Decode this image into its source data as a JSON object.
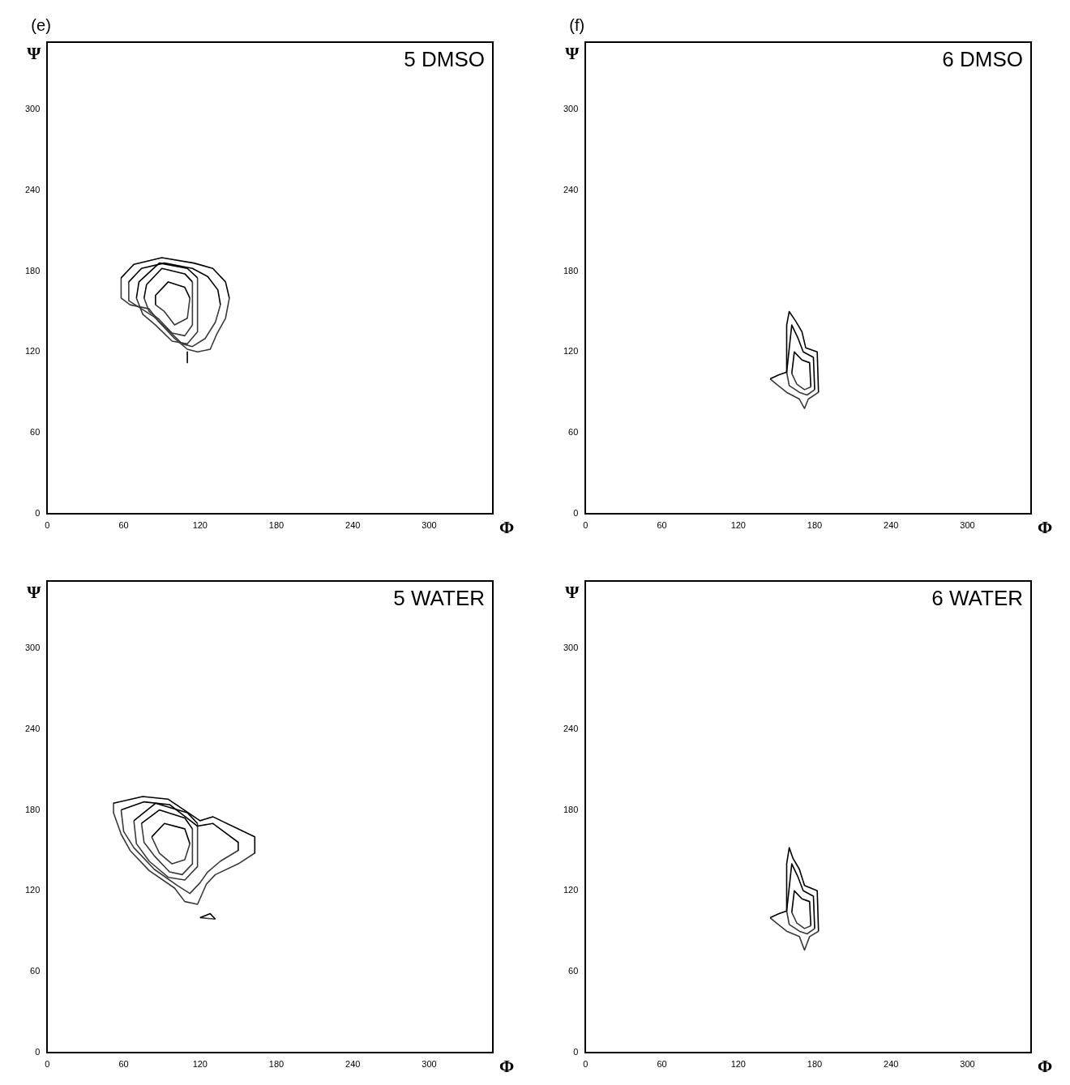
{
  "chart_data": [
    {
      "type": "line",
      "title": "5 DMSO",
      "annotations": [
        "(e)"
      ],
      "xlabel": "Φ",
      "ylabel": "Ψ",
      "xlim": [
        0,
        350
      ],
      "ylim": [
        0,
        350
      ],
      "xticks": [
        0,
        60,
        120,
        180,
        240,
        300
      ],
      "yticks": [
        0,
        60,
        120,
        180,
        240,
        300
      ],
      "marker": "none",
      "line_style": "solid",
      "series": [
        {
          "color": "#000000",
          "x": [
            58,
            68,
            90,
            115,
            130,
            140,
            143
          ],
          "values": [
            175,
            185,
            190,
            186,
            182,
            172,
            160
          ]
        },
        {
          "color": "#3a3a3a",
          "x": [
            58,
            58,
            65,
            80,
            88,
            100,
            110,
            118,
            128,
            133,
            140,
            143
          ],
          "values": [
            175,
            160,
            155,
            152,
            142,
            130,
            122,
            120,
            122,
            133,
            145,
            160
          ]
        },
        {
          "color": "#000000",
          "x": [
            64,
            74,
            92,
            114,
            126,
            134,
            136
          ],
          "values": [
            172,
            182,
            186,
            182,
            176,
            166,
            155
          ]
        },
        {
          "color": "#3a3a3a",
          "x": [
            64,
            64,
            74,
            84,
            94,
            106,
            114,
            124,
            132,
            136
          ],
          "values": [
            172,
            158,
            152,
            146,
            137,
            126,
            124,
            130,
            142,
            155
          ]
        },
        {
          "color": "#000000",
          "x": [
            70,
            72,
            88,
            110,
            118
          ],
          "values": [
            160,
            172,
            186,
            182,
            175
          ]
        },
        {
          "color": "#3a3a3a",
          "x": [
            70,
            75,
            85,
            98,
            110,
            118,
            118
          ],
          "values": [
            160,
            148,
            140,
            128,
            126,
            135,
            175
          ]
        },
        {
          "color": "#000000",
          "x": [
            76,
            78,
            90,
            108,
            114
          ],
          "values": [
            160,
            170,
            182,
            178,
            172
          ]
        },
        {
          "color": "#3a3a3a",
          "x": [
            76,
            80,
            88,
            98,
            108,
            114,
            114
          ],
          "values": [
            160,
            150,
            144,
            134,
            132,
            140,
            172
          ]
        },
        {
          "color": "#000000",
          "x": [
            85,
            85,
            95,
            108,
            112
          ],
          "values": [
            155,
            162,
            172,
            168,
            160
          ]
        },
        {
          "color": "#3a3a3a",
          "x": [
            85,
            92,
            100,
            110,
            112
          ],
          "values": [
            155,
            150,
            140,
            145,
            160
          ]
        },
        {
          "color": "#000000",
          "x": [
            110,
            110
          ],
          "values": [
            120,
            112
          ]
        }
      ]
    },
    {
      "type": "line",
      "title": "6 DMSO",
      "annotations": [
        "(f)"
      ],
      "xlabel": "Φ",
      "ylabel": "Ψ",
      "xlim": [
        0,
        350
      ],
      "ylim": [
        0,
        350
      ],
      "xticks": [
        0,
        60,
        120,
        180,
        240,
        300
      ],
      "yticks": [
        0,
        60,
        120,
        180,
        240,
        300
      ],
      "marker": "none",
      "line_style": "solid",
      "series": [
        {
          "color": "#000000",
          "x": [
            145,
            152,
            158,
            158,
            160,
            165,
            170,
            173,
            182,
            183
          ],
          "values": [
            100,
            103,
            105,
            140,
            150,
            143,
            135,
            123,
            120,
            90
          ]
        },
        {
          "color": "#3a3a3a",
          "x": [
            145,
            150,
            158,
            168,
            172,
            175,
            183
          ],
          "values": [
            100,
            96,
            90,
            85,
            78,
            85,
            90
          ]
        },
        {
          "color": "#000000",
          "x": [
            158,
            162,
            167,
            171,
            179,
            180
          ],
          "values": [
            105,
            140,
            130,
            120,
            116,
            92
          ]
        },
        {
          "color": "#3a3a3a",
          "x": [
            158,
            160,
            168,
            174,
            180
          ],
          "values": [
            105,
            95,
            90,
            88,
            92
          ]
        },
        {
          "color": "#000000",
          "x": [
            162,
            164,
            170,
            176,
            177
          ],
          "values": [
            104,
            120,
            114,
            112,
            94
          ]
        },
        {
          "color": "#3a3a3a",
          "x": [
            162,
            166,
            172,
            177
          ],
          "values": [
            104,
            96,
            92,
            94
          ]
        }
      ]
    },
    {
      "type": "line",
      "title": "5 WATER",
      "xlabel": "Φ",
      "ylabel": "Ψ",
      "xlim": [
        0,
        350
      ],
      "ylim": [
        0,
        350
      ],
      "xticks": [
        0,
        60,
        120,
        180,
        240,
        300
      ],
      "yticks": [
        0,
        60,
        120,
        180,
        240,
        300
      ],
      "marker": "none",
      "line_style": "solid",
      "series": [
        {
          "color": "#000000",
          "x": [
            52,
            75,
            95,
            120,
            130,
            163,
            163
          ],
          "values": [
            185,
            190,
            188,
            172,
            175,
            160,
            148
          ]
        },
        {
          "color": "#3a3a3a",
          "x": [
            52,
            52,
            58,
            65,
            80,
            100,
            108,
            118,
            125,
            132,
            150,
            163
          ],
          "values": [
            185,
            178,
            162,
            150,
            135,
            122,
            112,
            110,
            125,
            132,
            140,
            148
          ]
        },
        {
          "color": "#000000",
          "x": [
            58,
            76,
            96,
            118,
            130,
            150,
            150
          ],
          "values": [
            180,
            186,
            184,
            168,
            170,
            156,
            150
          ]
        },
        {
          "color": "#3a3a3a",
          "x": [
            58,
            60,
            68,
            84,
            102,
            112,
            120,
            126,
            136,
            150
          ],
          "values": [
            180,
            164,
            152,
            136,
            124,
            118,
            126,
            134,
            142,
            150
          ]
        },
        {
          "color": "#000000",
          "x": [
            68,
            85,
            110,
            118
          ],
          "values": [
            172,
            185,
            178,
            170
          ]
        },
        {
          "color": "#3a3a3a",
          "x": [
            68,
            70,
            80,
            95,
            108,
            118,
            118
          ],
          "values": [
            172,
            155,
            142,
            130,
            128,
            138,
            170
          ]
        },
        {
          "color": "#000000",
          "x": [
            74,
            88,
            108,
            114
          ],
          "values": [
            170,
            180,
            174,
            166
          ]
        },
        {
          "color": "#3a3a3a",
          "x": [
            74,
            76,
            84,
            96,
            106,
            114,
            114
          ],
          "values": [
            170,
            156,
            146,
            134,
            132,
            140,
            166
          ]
        },
        {
          "color": "#000000",
          "x": [
            82,
            92,
            108,
            112
          ],
          "values": [
            160,
            170,
            166,
            155
          ]
        },
        {
          "color": "#3a3a3a",
          "x": [
            82,
            88,
            98,
            108,
            112
          ],
          "values": [
            160,
            148,
            140,
            143,
            155
          ]
        },
        {
          "color": "#000000",
          "x": [
            120,
            128,
            132
          ],
          "values": [
            100,
            103,
            99
          ]
        },
        {
          "color": "#3a3a3a",
          "x": [
            120,
            132
          ],
          "values": [
            100,
            99
          ]
        }
      ]
    },
    {
      "type": "line",
      "title": "6 WATER",
      "xlabel": "Φ",
      "ylabel": "Ψ",
      "xlim": [
        0,
        350
      ],
      "ylim": [
        0,
        350
      ],
      "xticks": [
        0,
        60,
        120,
        180,
        240,
        300
      ],
      "yticks": [
        0,
        60,
        120,
        180,
        240,
        300
      ],
      "marker": "none",
      "line_style": "solid",
      "series": [
        {
          "color": "#000000",
          "x": [
            145,
            152,
            158,
            158,
            160,
            163,
            168,
            172,
            182,
            183
          ],
          "values": [
            100,
            103,
            105,
            140,
            152,
            144,
            136,
            124,
            120,
            90
          ]
        },
        {
          "color": "#3a3a3a",
          "x": [
            145,
            150,
            158,
            168,
            172,
            176,
            183
          ],
          "values": [
            100,
            96,
            90,
            86,
            76,
            86,
            90
          ]
        },
        {
          "color": "#000000",
          "x": [
            158,
            162,
            167,
            171,
            179,
            180
          ],
          "values": [
            105,
            140,
            130,
            120,
            116,
            92
          ]
        },
        {
          "color": "#3a3a3a",
          "x": [
            158,
            160,
            168,
            174,
            180
          ],
          "values": [
            105,
            95,
            90,
            88,
            92
          ]
        },
        {
          "color": "#000000",
          "x": [
            162,
            164,
            170,
            176,
            177
          ],
          "values": [
            104,
            120,
            114,
            112,
            94
          ]
        },
        {
          "color": "#3a3a3a",
          "x": [
            162,
            166,
            172,
            177
          ],
          "values": [
            104,
            96,
            92,
            94
          ]
        }
      ]
    }
  ]
}
